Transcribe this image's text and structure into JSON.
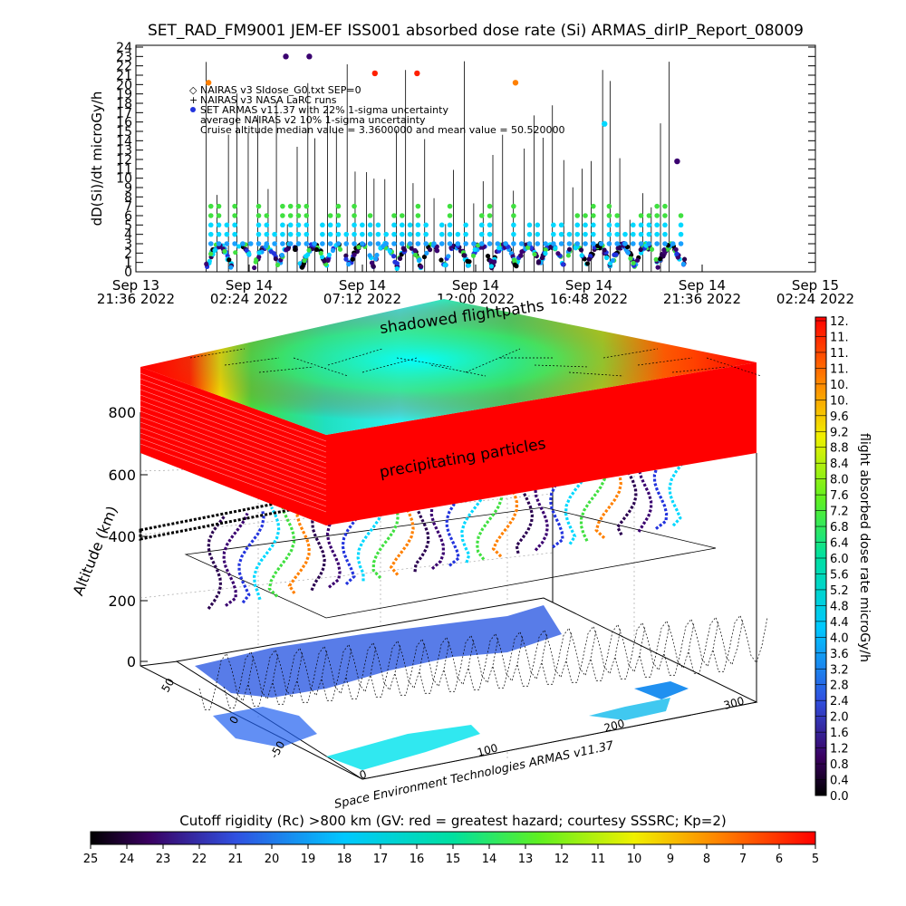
{
  "chart_data": [
    {
      "type": "scatter",
      "title": "SET_RAD_FM9001  JEM-EF ISS001 absorbed dose rate (Si) ARMAS_dirIP_Report_08009",
      "ylabel": "dD(Si)/dt microGy/h",
      "ylim": [
        0,
        24
      ],
      "y_ticks": [
        "0",
        "1",
        "2",
        "3",
        "4",
        "5",
        "6",
        "7",
        "8",
        "9",
        "10",
        "11",
        "12",
        "13",
        "14",
        "15",
        "16",
        "17",
        "18",
        "19",
        "20",
        "21",
        "22",
        "23",
        "24"
      ],
      "x_ticks": [
        {
          "line1": "Sep 13",
          "line2": "21:36 2022"
        },
        {
          "line1": "Sep 14",
          "line2": "02:24 2022"
        },
        {
          "line1": "Sep 14",
          "line2": "07:12 2022"
        },
        {
          "line1": "Sep 14",
          "line2": "12:00 2022"
        },
        {
          "line1": "Sep 14",
          "line2": "16:48 2022"
        },
        {
          "line1": "Sep 14",
          "line2": "21:36 2022"
        },
        {
          "line1": "Sep 15",
          "line2": "02:24 2022"
        }
      ],
      "legend": {
        "position": "top-left",
        "entries": [
          {
            "marker": "diamond",
            "color": "#000000",
            "text": "NAIRAS v3 SIdose_G0.txt SEP=0"
          },
          {
            "marker": "plus",
            "color": "#000000",
            "text": "NAIRAS v3 NASA LaRC runs"
          },
          {
            "marker": "dot",
            "color": "#2233dd",
            "text": "SET ARMAS v11.37 with 22% 1-sigma uncertainty"
          },
          {
            "marker": "none",
            "color": "#000000",
            "text": "average NAIRAS v2 10% 1-sigma uncertainty"
          },
          {
            "marker": "none",
            "color": "#000000",
            "text": "Cruise altitude median value = 3.3600000 and mean value = 50.520000"
          }
        ]
      },
      "series": [
        {
          "name": "SET ARMAS v11.37 spikes",
          "x_hours_from_first_tick": [
            3.1,
            6.4,
            7.4,
            10.2,
            12.0,
            16.2,
            20.0,
            23.1
          ],
          "values": [
            20.2,
            23.0,
            23.0,
            21.2,
            21.2,
            20.2,
            15.8,
            11.8
          ]
        }
      ],
      "baseline_range": [
        0,
        3
      ]
    },
    {
      "type": "heatmap",
      "zlabel": "Altitude (km)",
      "z_ticks": [
        "0",
        "200",
        "400",
        "600",
        "800"
      ],
      "map_x_ticks": [
        "0",
        "100",
        "200",
        "300"
      ],
      "map_y_ticks": [
        "-50",
        "0",
        "50"
      ],
      "annotations": [
        "shadowed flightpaths",
        "precipitating particles"
      ],
      "credit": "Space Environment Technologies ARMAS v11.37",
      "colorbar": {
        "label": "flight absorbed dose rate microGy/h",
        "ticks": [
          "0.0",
          "0.4",
          "0.8",
          "1.2",
          "1.6",
          "2.0",
          "2.4",
          "2.8",
          "3.2",
          "3.6",
          "4.0",
          "4.4",
          "4.8",
          "5.2",
          "5.6",
          "6.0",
          "6.4",
          "6.8",
          "7.2",
          "7.6",
          "8.0",
          "8.4",
          "8.8",
          "9.2",
          "9.6",
          "10.",
          "10.",
          "11.",
          "11.",
          "11.",
          "12."
        ]
      },
      "cutoff_bar": {
        "label": "Cutoff rigidity (Rc) >800 km (GV: red = greatest hazard; courtesy SSSRC; Kp=2)",
        "ticks": [
          "25",
          "24",
          "23",
          "22",
          "21",
          "20",
          "19",
          "18",
          "17",
          "16",
          "15",
          "14",
          "13",
          "12",
          "11",
          "10",
          "9",
          "8",
          "7",
          "6",
          "5"
        ]
      }
    }
  ]
}
